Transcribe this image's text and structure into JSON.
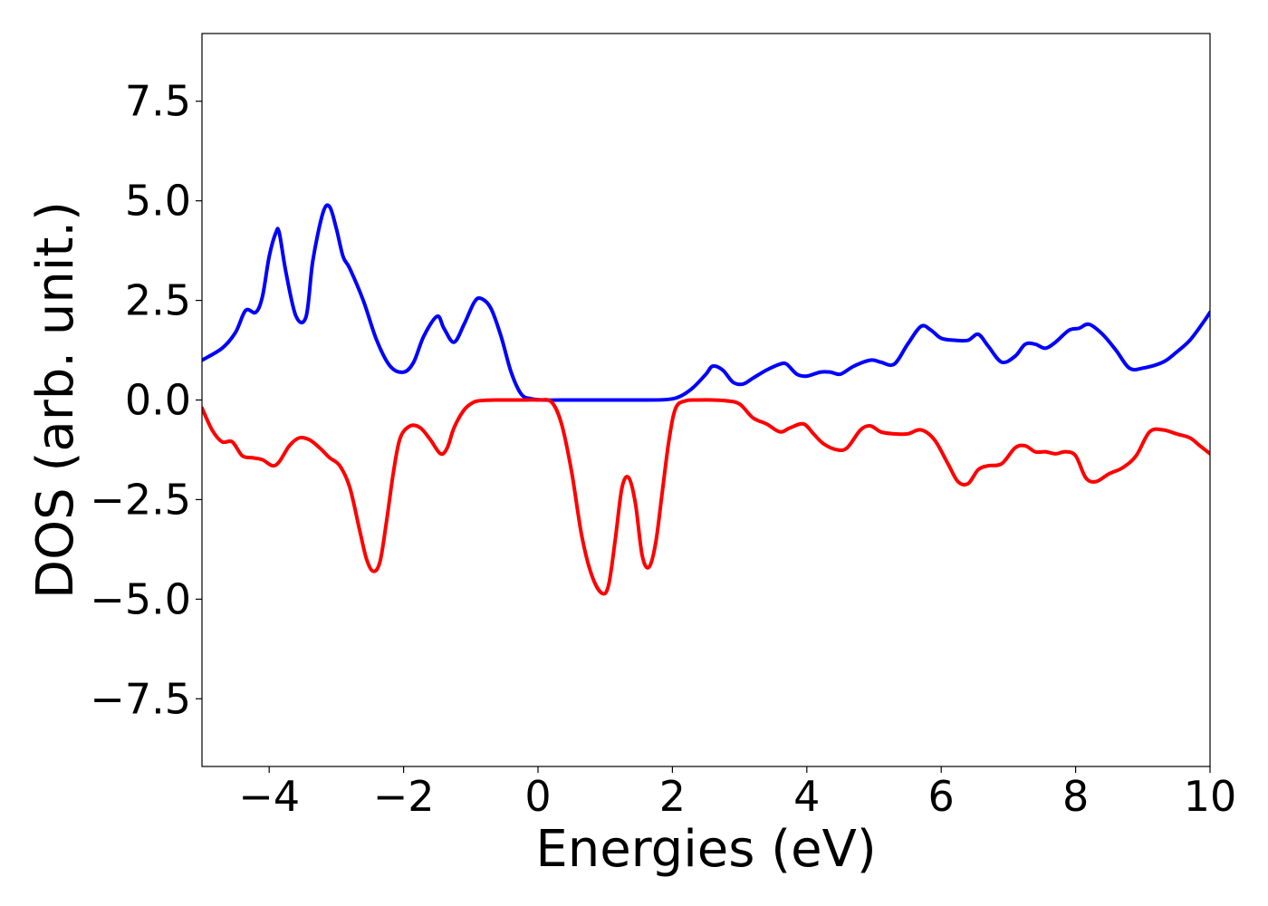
{
  "chart_data": {
    "type": "line",
    "title": "",
    "xlabel": "Energies (eV)",
    "ylabel": "DOS (arb. unit.)",
    "xlim": [
      -5,
      10
    ],
    "ylim": [
      -9.2,
      9.2
    ],
    "xticks": [
      -4,
      -2,
      0,
      2,
      4,
      6,
      8,
      10
    ],
    "xtick_labels": [
      "−4",
      "−2",
      "0",
      "2",
      "4",
      "6",
      "8",
      "10"
    ],
    "yticks": [
      7.5,
      5.0,
      2.5,
      0.0,
      -2.5,
      -5.0,
      -7.5
    ],
    "ytick_labels": [
      "7.5",
      "5.0",
      "2.5",
      "0.0",
      "−2.5",
      "−5.0",
      "−7.5"
    ],
    "grid": false,
    "series": [
      {
        "color": "#0000ff",
        "x": [
          -5.0,
          -4.7,
          -4.5,
          -4.35,
          -4.2,
          -4.1,
          -4.0,
          -3.9,
          -3.85,
          -3.75,
          -3.6,
          -3.45,
          -3.35,
          -3.2,
          -3.1,
          -3.0,
          -2.9,
          -2.8,
          -2.6,
          -2.4,
          -2.2,
          -2.0,
          -1.85,
          -1.7,
          -1.5,
          -1.4,
          -1.25,
          -1.1,
          -0.95,
          -0.85,
          -0.7,
          -0.55,
          -0.4,
          -0.25,
          -0.1,
          0.1,
          0.5,
          1.0,
          1.5,
          1.9,
          2.1,
          2.3,
          2.5,
          2.6,
          2.75,
          2.9,
          3.05,
          3.2,
          3.4,
          3.6,
          3.7,
          3.85,
          4.0,
          4.2,
          4.35,
          4.5,
          4.7,
          4.95,
          5.1,
          5.3,
          5.5,
          5.7,
          5.85,
          6.0,
          6.2,
          6.4,
          6.55,
          6.7,
          6.9,
          7.1,
          7.25,
          7.4,
          7.55,
          7.7,
          7.9,
          8.05,
          8.2,
          8.4,
          8.6,
          8.8,
          9.0,
          9.3,
          9.5,
          9.7,
          9.9,
          10.0
        ],
        "y": [
          1.0,
          1.3,
          1.7,
          2.25,
          2.2,
          2.6,
          3.6,
          4.2,
          4.2,
          3.2,
          2.1,
          2.1,
          3.5,
          4.7,
          4.85,
          4.3,
          3.6,
          3.3,
          2.5,
          1.5,
          0.85,
          0.7,
          0.95,
          1.6,
          2.1,
          1.8,
          1.45,
          1.9,
          2.45,
          2.55,
          2.3,
          1.6,
          0.7,
          0.15,
          0.03,
          0.0,
          0.0,
          0.0,
          0.0,
          0.01,
          0.08,
          0.3,
          0.65,
          0.85,
          0.75,
          0.45,
          0.4,
          0.55,
          0.75,
          0.9,
          0.9,
          0.65,
          0.6,
          0.7,
          0.7,
          0.65,
          0.85,
          1.0,
          0.95,
          0.9,
          1.4,
          1.85,
          1.75,
          1.55,
          1.5,
          1.5,
          1.65,
          1.35,
          0.95,
          1.1,
          1.4,
          1.4,
          1.3,
          1.45,
          1.75,
          1.8,
          1.9,
          1.65,
          1.25,
          0.8,
          0.8,
          0.95,
          1.2,
          1.5,
          1.95,
          2.2
        ]
      },
      {
        "color": "#ff0000",
        "x": [
          -5.0,
          -4.85,
          -4.7,
          -4.55,
          -4.4,
          -4.25,
          -4.1,
          -3.95,
          -3.85,
          -3.7,
          -3.55,
          -3.4,
          -3.25,
          -3.1,
          -2.95,
          -2.8,
          -2.65,
          -2.55,
          -2.45,
          -2.35,
          -2.25,
          -2.15,
          -2.05,
          -1.9,
          -1.75,
          -1.6,
          -1.45,
          -1.35,
          -1.25,
          -1.1,
          -0.95,
          -0.8,
          -0.6,
          -0.4,
          -0.2,
          0.0,
          0.2,
          0.35,
          0.5,
          0.65,
          0.8,
          0.95,
          1.05,
          1.15,
          1.25,
          1.35,
          1.45,
          1.55,
          1.65,
          1.75,
          1.85,
          1.95,
          2.05,
          2.2,
          2.4,
          2.6,
          2.8,
          3.0,
          3.2,
          3.4,
          3.6,
          3.75,
          3.95,
          4.1,
          4.25,
          4.45,
          4.6,
          4.8,
          4.95,
          5.1,
          5.3,
          5.5,
          5.7,
          5.9,
          6.1,
          6.25,
          6.4,
          6.55,
          6.7,
          6.9,
          7.1,
          7.25,
          7.4,
          7.55,
          7.7,
          7.85,
          8.0,
          8.15,
          8.3,
          8.5,
          8.7,
          8.9,
          9.1,
          9.3,
          9.5,
          9.7,
          9.85,
          10.0
        ],
        "y": [
          -0.2,
          -0.75,
          -1.05,
          -1.05,
          -1.4,
          -1.45,
          -1.5,
          -1.65,
          -1.55,
          -1.15,
          -0.95,
          -1.0,
          -1.2,
          -1.45,
          -1.65,
          -2.2,
          -3.3,
          -4.0,
          -4.3,
          -4.05,
          -3.0,
          -1.8,
          -0.95,
          -0.65,
          -0.7,
          -1.0,
          -1.35,
          -1.2,
          -0.7,
          -0.25,
          -0.05,
          -0.01,
          0.0,
          0.0,
          0.0,
          0.0,
          -0.05,
          -0.6,
          -1.8,
          -3.4,
          -4.4,
          -4.85,
          -4.65,
          -3.5,
          -2.2,
          -1.95,
          -2.6,
          -3.9,
          -4.2,
          -3.6,
          -2.3,
          -1.0,
          -0.2,
          -0.02,
          0.0,
          0.0,
          -0.02,
          -0.1,
          -0.45,
          -0.6,
          -0.8,
          -0.7,
          -0.6,
          -0.85,
          -1.1,
          -1.25,
          -1.2,
          -0.75,
          -0.65,
          -0.8,
          -0.85,
          -0.85,
          -0.75,
          -1.0,
          -1.6,
          -2.05,
          -2.1,
          -1.75,
          -1.65,
          -1.6,
          -1.2,
          -1.15,
          -1.3,
          -1.3,
          -1.35,
          -1.3,
          -1.4,
          -1.95,
          -2.05,
          -1.85,
          -1.7,
          -1.4,
          -0.8,
          -0.75,
          -0.85,
          -0.95,
          -1.15,
          -1.35
        ]
      }
    ]
  }
}
